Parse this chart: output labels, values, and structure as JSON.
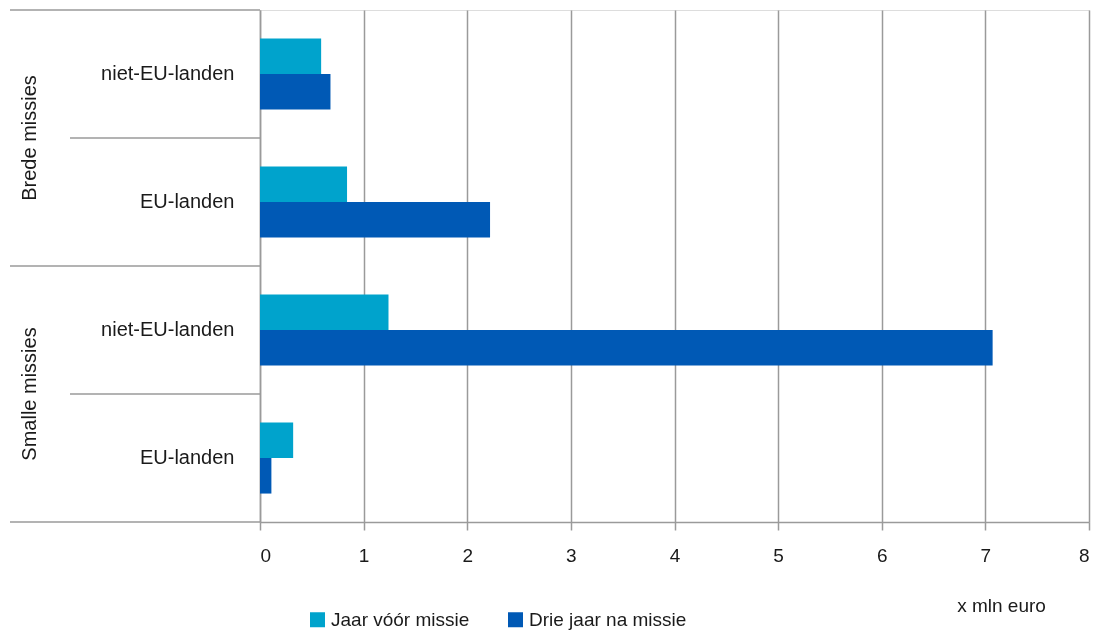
{
  "chart_data": {
    "type": "bar",
    "orientation": "horizontal",
    "categories": [
      "niet-EU-landen",
      "EU-landen",
      "niet-EU-landen",
      "EU-landen"
    ],
    "series": [
      {
        "name": "Jaar vóór missie",
        "color": "#00a3cc",
        "values": [
          0.59,
          0.84,
          1.24,
          0.32
        ]
      },
      {
        "name": "Drie jaar na missie",
        "color": "#0059b5",
        "values": [
          0.68,
          2.22,
          7.07,
          0.11
        ]
      }
    ],
    "xlabel": "x mln euro",
    "xlim": [
      0,
      8
    ],
    "xticks": [
      0,
      1,
      2,
      3,
      4,
      5,
      6,
      7,
      8
    ],
    "grid": "x",
    "legend": "bottom",
    "annotations": [
      "Brede missies",
      "Smalle missies"
    ]
  }
}
